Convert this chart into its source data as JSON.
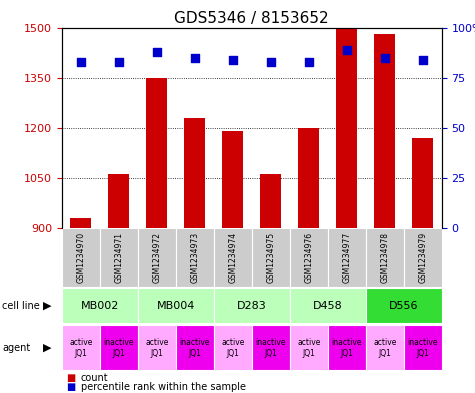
{
  "title": "GDS5346 / 8153652",
  "samples": [
    "GSM1234970",
    "GSM1234971",
    "GSM1234972",
    "GSM1234973",
    "GSM1234974",
    "GSM1234975",
    "GSM1234976",
    "GSM1234977",
    "GSM1234978",
    "GSM1234979"
  ],
  "counts": [
    930,
    1060,
    1350,
    1230,
    1190,
    1060,
    1200,
    1500,
    1480,
    1170
  ],
  "percentiles": [
    83,
    83,
    88,
    85,
    84,
    83,
    83,
    89,
    85,
    84
  ],
  "cell_lines": [
    {
      "label": "MB002",
      "cols": [
        0,
        1
      ],
      "color": "#bbffbb"
    },
    {
      "label": "MB004",
      "cols": [
        2,
        3
      ],
      "color": "#bbffbb"
    },
    {
      "label": "D283",
      "cols": [
        4,
        5
      ],
      "color": "#bbffbb"
    },
    {
      "label": "D458",
      "cols": [
        6,
        7
      ],
      "color": "#bbffbb"
    },
    {
      "label": "D556",
      "cols": [
        8,
        9
      ],
      "color": "#33dd33"
    }
  ],
  "agents": [
    "active\nJQ1",
    "inactive\nJQ1",
    "active\nJQ1",
    "inactive\nJQ1",
    "active\nJQ1",
    "inactive\nJQ1",
    "active\nJQ1",
    "inactive\nJQ1",
    "active\nJQ1",
    "inactive\nJQ1"
  ],
  "agent_colors": [
    "#ffaaff",
    "#ee00ee",
    "#ffaaff",
    "#ee00ee",
    "#ffaaff",
    "#ee00ee",
    "#ffaaff",
    "#ee00ee",
    "#ffaaff",
    "#ee00ee"
  ],
  "bar_color": "#cc0000",
  "dot_color": "#0000cc",
  "ylim_left": [
    900,
    1500
  ],
  "yticks_left": [
    900,
    1050,
    1200,
    1350,
    1500
  ],
  "ylim_right": [
    0,
    100
  ],
  "yticks_right": [
    0,
    25,
    50,
    75,
    100
  ],
  "yticklabels_right": [
    "0",
    "25",
    "50",
    "75",
    "100%"
  ],
  "bar_width": 0.55,
  "sample_bg_color": "#cccccc",
  "grid_color": "#000000",
  "title_fontsize": 11,
  "tick_fontsize": 8,
  "label_fontsize": 8
}
